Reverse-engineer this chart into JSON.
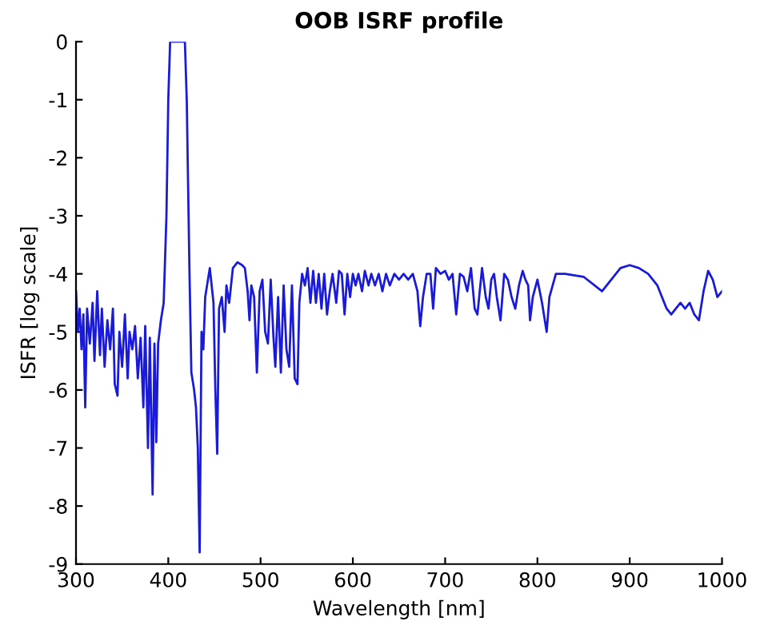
{
  "chart_data": {
    "type": "line",
    "title": "OOB ISRF profile",
    "xlabel": "Wavelength [nm]",
    "ylabel": "ISFR [log scale]",
    "xlim": [
      300,
      1000
    ],
    "ylim": [
      -9,
      0
    ],
    "xticks": [
      300,
      400,
      500,
      600,
      700,
      800,
      900,
      1000
    ],
    "yticks": [
      -9,
      -8,
      -7,
      -6,
      -5,
      -4,
      -3,
      -2,
      -1,
      0
    ],
    "grid": false,
    "line_style": "solid",
    "series": [
      {
        "color": "#1a1adb",
        "x": [
          300,
          302,
          304,
          306,
          308,
          310,
          312,
          315,
          318,
          320,
          323,
          326,
          328,
          331,
          334,
          337,
          340,
          342,
          345,
          347,
          350,
          353,
          356,
          358,
          361,
          364,
          367,
          370,
          373,
          375,
          378,
          380,
          383,
          385,
          387,
          389,
          392,
          395,
          398,
          400,
          402,
          418,
          420,
          423,
          425,
          428,
          430,
          432,
          434,
          436,
          438,
          440,
          443,
          445,
          447,
          449,
          451,
          453,
          455,
          458,
          461,
          463,
          466,
          470,
          475,
          480,
          483,
          486,
          488,
          490,
          493,
          496,
          499,
          502,
          505,
          508,
          511,
          514,
          516,
          519,
          522,
          525,
          528,
          531,
          534,
          537,
          540,
          542,
          545,
          548,
          551,
          554,
          557,
          560,
          563,
          566,
          569,
          572,
          575,
          578,
          582,
          585,
          588,
          591,
          594,
          597,
          600,
          603,
          606,
          610,
          613,
          617,
          620,
          624,
          628,
          632,
          636,
          640,
          645,
          650,
          655,
          660,
          665,
          670,
          673,
          676,
          680,
          684,
          687,
          690,
          695,
          700,
          704,
          708,
          712,
          716,
          720,
          724,
          728,
          732,
          735,
          740,
          744,
          747,
          750,
          753,
          756,
          760,
          764,
          768,
          772,
          776,
          780,
          784,
          787,
          790,
          792,
          795,
          800,
          805,
          810,
          813,
          820,
          830,
          850,
          870,
          880,
          890,
          900,
          910,
          920,
          930,
          940,
          945,
          950,
          955,
          960,
          965,
          970,
          975,
          980,
          985,
          990,
          995,
          1000
        ],
        "values": [
          -4.3,
          -5.0,
          -4.6,
          -5.3,
          -4.7,
          -6.3,
          -4.6,
          -5.2,
          -4.5,
          -5.5,
          -4.3,
          -5.4,
          -4.6,
          -5.6,
          -4.8,
          -5.3,
          -4.6,
          -5.9,
          -6.1,
          -5.0,
          -5.6,
          -4.7,
          -5.8,
          -5.0,
          -5.3,
          -4.9,
          -5.8,
          -5.1,
          -6.3,
          -4.9,
          -7.0,
          -5.1,
          -7.8,
          -5.2,
          -6.9,
          -5.2,
          -4.8,
          -4.5,
          -3.0,
          -1.0,
          0,
          0,
          -1.0,
          -4.0,
          -5.7,
          -6.0,
          -6.3,
          -7.0,
          -8.8,
          -5.0,
          -5.3,
          -4.4,
          -4.1,
          -3.9,
          -4.2,
          -4.5,
          -6.0,
          -7.1,
          -4.6,
          -4.4,
          -5.0,
          -4.2,
          -4.5,
          -3.9,
          -3.8,
          -3.85,
          -3.9,
          -4.3,
          -4.8,
          -4.2,
          -4.4,
          -5.7,
          -4.3,
          -4.1,
          -5.0,
          -5.2,
          -4.1,
          -5.1,
          -5.6,
          -4.4,
          -5.7,
          -4.2,
          -5.3,
          -5.6,
          -4.2,
          -5.8,
          -5.9,
          -4.5,
          -4.0,
          -4.2,
          -3.9,
          -4.5,
          -3.95,
          -4.5,
          -4.0,
          -4.6,
          -4.0,
          -4.7,
          -4.3,
          -4.0,
          -4.5,
          -3.95,
          -4.0,
          -4.7,
          -4.0,
          -4.4,
          -4.0,
          -4.2,
          -4.0,
          -4.3,
          -3.95,
          -4.2,
          -4.0,
          -4.2,
          -4.0,
          -4.3,
          -4.0,
          -4.2,
          -4.0,
          -4.1,
          -4.0,
          -4.1,
          -4.0,
          -4.3,
          -4.9,
          -4.4,
          -4.0,
          -4.0,
          -4.6,
          -3.9,
          -4.0,
          -3.95,
          -4.1,
          -4.0,
          -4.7,
          -4.0,
          -4.05,
          -4.3,
          -3.9,
          -4.6,
          -4.7,
          -3.9,
          -4.4,
          -4.6,
          -4.1,
          -4.0,
          -4.4,
          -4.8,
          -4.0,
          -4.1,
          -4.4,
          -4.6,
          -4.2,
          -3.95,
          -4.1,
          -4.2,
          -4.8,
          -4.4,
          -4.1,
          -4.5,
          -5.0,
          -4.4,
          -4.0,
          -4.0,
          -4.05,
          -4.3,
          -4.1,
          -3.9,
          -3.85,
          -3.9,
          -4.0,
          -4.2,
          -4.6,
          -4.7,
          -4.6,
          -4.5,
          -4.6,
          -4.5,
          -4.7,
          -4.8,
          -4.3,
          -3.95,
          -4.1,
          -4.4,
          -4.3
        ]
      }
    ]
  }
}
